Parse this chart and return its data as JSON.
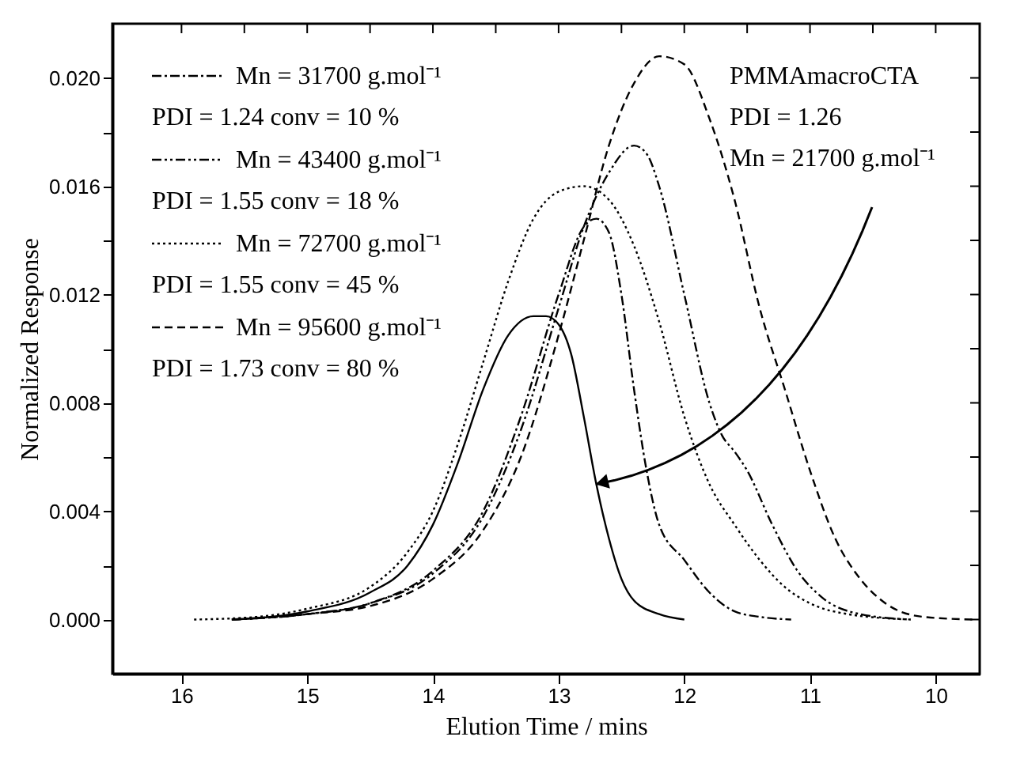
{
  "chart_data": {
    "type": "line",
    "xlabel": "Elution Time / mins",
    "ylabel": "Normalized Response",
    "xlim": [
      16.55,
      9.65
    ],
    "ylim": [
      -0.002,
      0.022
    ],
    "xticks": [
      16,
      {
        "value": 15.5,
        "label": null
      },
      15,
      {
        "value": 14.5,
        "label": null
      },
      14,
      {
        "value": 13.5,
        "label": null
      },
      13,
      {
        "value": 12.5,
        "label": null
      },
      12,
      {
        "value": 11.5,
        "label": null
      },
      11,
      {
        "value": 10.5,
        "label": null
      },
      10
    ],
    "yticks": [
      {
        "value": 0,
        "label": "0.000"
      },
      {
        "value": 0.002,
        "label": null
      },
      {
        "value": 0.004,
        "label": "0.004"
      },
      {
        "value": 0.006,
        "label": null
      },
      {
        "value": 0.008,
        "label": "0.008"
      },
      {
        "value": 0.01,
        "label": null
      },
      {
        "value": 0.012,
        "label": "0.012"
      },
      {
        "value": 0.014,
        "label": null
      },
      {
        "value": 0.016,
        "label": "0.016"
      },
      {
        "value": 0.018,
        "label": null
      },
      {
        "value": 0.02,
        "label": "0.020"
      }
    ],
    "grid": false,
    "legend": "top left",
    "series": [
      {
        "color": "#000000",
        "line_style": "solid",
        "x": [
          15.6,
          15.0,
          14.5,
          14.2,
          14.0,
          13.8,
          13.6,
          13.4,
          13.2,
          13.1,
          13.0,
          12.9,
          12.8,
          12.7,
          12.6,
          12.5,
          12.4,
          12.2,
          12.0
        ],
        "values": [
          0,
          0.0003,
          0.001,
          0.002,
          0.0035,
          0.0058,
          0.0085,
          0.0105,
          0.0112,
          0.0112,
          0.0109,
          0.0098,
          0.0075,
          0.005,
          0.003,
          0.0015,
          0.0007,
          0.0002,
          0
        ]
      },
      {
        "name": "Mn = 31700 g.mol⁻¹",
        "color": "#000000",
        "line_style": "dashdot",
        "x": [
          15.6,
          15.0,
          14.5,
          14.0,
          13.6,
          13.3,
          13.0,
          12.8,
          12.7,
          12.6,
          12.5,
          12.4,
          12.3,
          12.2,
          12.0,
          11.8,
          11.6,
          11.4,
          11.15
        ],
        "values": [
          0,
          0.0002,
          0.0006,
          0.0018,
          0.004,
          0.0075,
          0.012,
          0.0145,
          0.0148,
          0.0143,
          0.012,
          0.0085,
          0.0055,
          0.0035,
          0.0022,
          0.001,
          0.0003,
          0.0001,
          0
        ]
      },
      {
        "name": "Mn = 43400 g.mol⁻¹",
        "color": "#000000",
        "line_style": "dashdotdot",
        "x": [
          15.6,
          15.0,
          14.5,
          14.0,
          13.6,
          13.3,
          13.0,
          12.8,
          12.6,
          12.4,
          12.3,
          12.2,
          12.0,
          11.8,
          11.7,
          11.6,
          11.5,
          11.3,
          11.1,
          10.9,
          10.6,
          10.2
        ],
        "values": [
          0,
          0.0002,
          0.0006,
          0.0017,
          0.0038,
          0.007,
          0.0115,
          0.0145,
          0.0165,
          0.0175,
          0.0172,
          0.016,
          0.012,
          0.008,
          0.0068,
          0.0062,
          0.0055,
          0.0035,
          0.0018,
          0.0008,
          0.0002,
          0
        ]
      },
      {
        "name": "Mn = 72700 g.mol⁻¹",
        "color": "#000000",
        "line_style": "dotted",
        "x": [
          15.9,
          15.4,
          15.0,
          14.5,
          14.2,
          14.0,
          13.8,
          13.6,
          13.4,
          13.2,
          13.0,
          12.8,
          12.6,
          12.4,
          12.2,
          12.0,
          11.8,
          11.6,
          11.4,
          11.2,
          11.0,
          10.7,
          10.2
        ],
        "values": [
          0,
          0.0001,
          0.0004,
          0.0012,
          0.0025,
          0.004,
          0.0065,
          0.0095,
          0.0125,
          0.0148,
          0.0158,
          0.016,
          0.0155,
          0.0138,
          0.011,
          0.0075,
          0.005,
          0.0035,
          0.0022,
          0.0012,
          0.0006,
          0.0002,
          0
        ]
      },
      {
        "name": "Mn = 95600 g.mol⁻¹",
        "color": "#000000",
        "line_style": "dashed",
        "x": [
          15.6,
          15.0,
          14.5,
          14.0,
          13.6,
          13.3,
          13.0,
          12.8,
          12.6,
          12.4,
          12.2,
          12.0,
          11.8,
          11.6,
          11.4,
          11.2,
          11.0,
          10.8,
          10.6,
          10.4,
          10.1,
          9.7
        ],
        "values": [
          0,
          0.0002,
          0.0005,
          0.0015,
          0.0033,
          0.006,
          0.0105,
          0.014,
          0.0175,
          0.0198,
          0.0208,
          0.0205,
          0.0185,
          0.0155,
          0.0115,
          0.0085,
          0.0055,
          0.003,
          0.0015,
          0.0006,
          0.0001,
          0
        ]
      }
    ],
    "annotations": [
      "PDI = 1.24 conv = 10 %",
      "PDI = 1.55 conv = 18 %",
      "PDI = 1.55 conv = 45 %",
      "PDI = 1.73 conv = 80 %",
      "PMMAmacroCTA",
      "PDI = 1.26",
      "Mn = 21700 g.mol⁻¹"
    ]
  }
}
